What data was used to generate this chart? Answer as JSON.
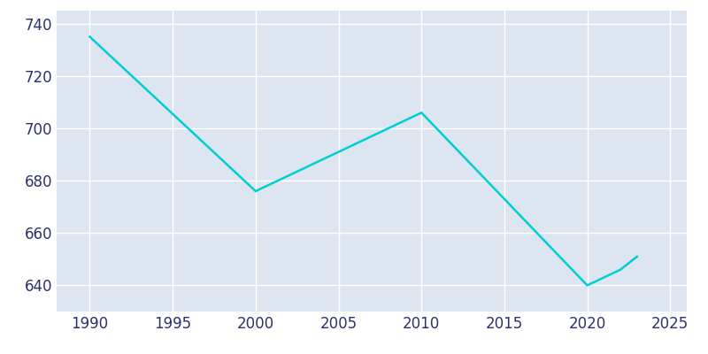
{
  "years": [
    1990,
    2000,
    2010,
    2020,
    2022,
    2023
  ],
  "population": [
    735,
    676,
    706,
    640,
    646,
    651
  ],
  "line_color": "#00CED1",
  "plot_background_color": "#DDE5F0",
  "figure_background_color": "#FFFFFF",
  "grid_color": "#FFFFFF",
  "text_color": "#2d3070",
  "xlim": [
    1988,
    2026
  ],
  "ylim": [
    630,
    745
  ],
  "xticks": [
    1990,
    1995,
    2000,
    2005,
    2010,
    2015,
    2020,
    2025
  ],
  "yticks": [
    640,
    660,
    680,
    700,
    720,
    740
  ],
  "linewidth": 1.8,
  "tick_labelsize": 12
}
